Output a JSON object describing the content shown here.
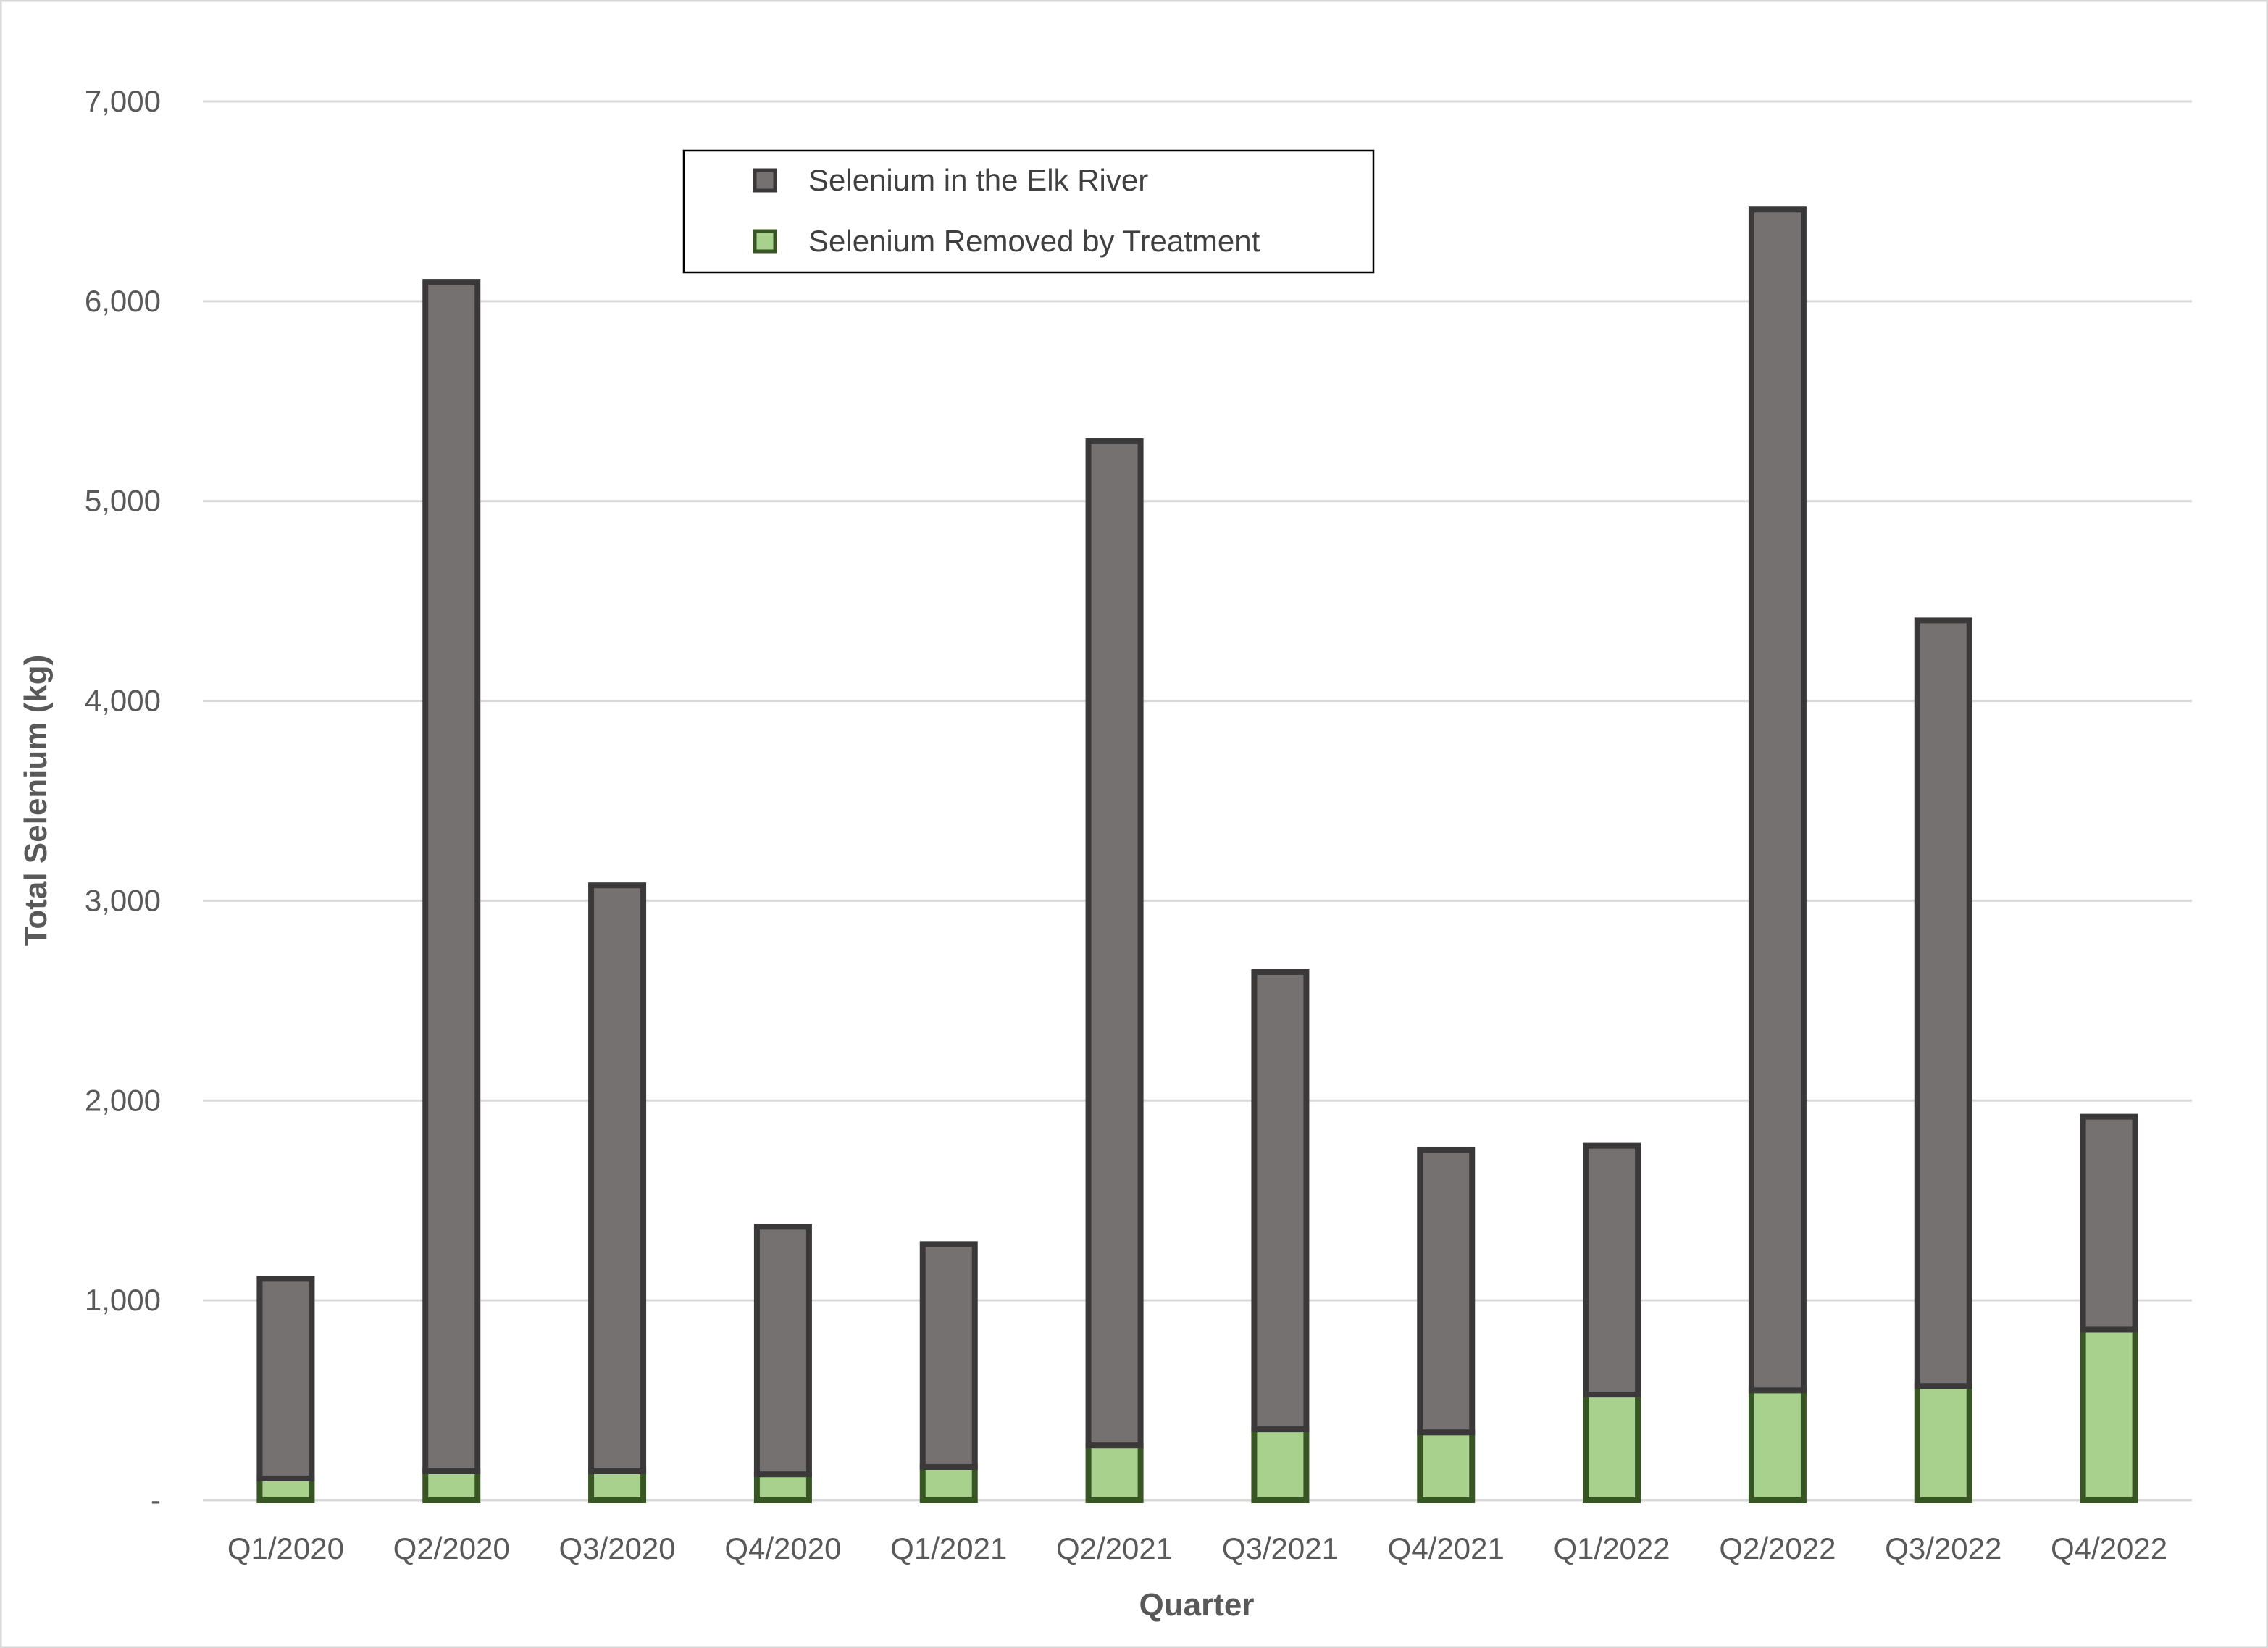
{
  "chart_data": {
    "type": "bar",
    "stacked": true,
    "title": "",
    "xlabel": "Quarter",
    "ylabel": "Total Selenium (kg)",
    "ylim": [
      0,
      7000
    ],
    "yticks": [
      0,
      1000,
      2000,
      3000,
      4000,
      5000,
      6000,
      7000
    ],
    "ytick_labels": [
      "-",
      "1,000",
      "2,000",
      "3,000",
      "4,000",
      "5,000",
      "6,000",
      "7,000"
    ],
    "grid": true,
    "legend_position": "top-center",
    "categories": [
      "Q1/2020",
      "Q2/2020",
      "Q3/2020",
      "Q4/2020",
      "Q1/2021",
      "Q2/2021",
      "Q3/2021",
      "Q4/2021",
      "Q1/2022",
      "Q2/2022",
      "Q3/2022",
      "Q4/2022"
    ],
    "series": [
      {
        "name": "Selenium Removed by Treatment",
        "color": "#a9d18e",
        "stroke": "#375623",
        "values": [
          109,
          145,
          145,
          130,
          167,
          275,
          355,
          340,
          529,
          550,
          572,
          854
        ]
      },
      {
        "name": "Selenium in the Elk River",
        "color": "#767171",
        "stroke": "#3a3838",
        "values": [
          999,
          5952,
          2932,
          1239,
          1115,
          5025,
          2288,
          1412,
          1245,
          5909,
          3831,
          1065
        ]
      }
    ],
    "legend_order": [
      1,
      0
    ]
  }
}
